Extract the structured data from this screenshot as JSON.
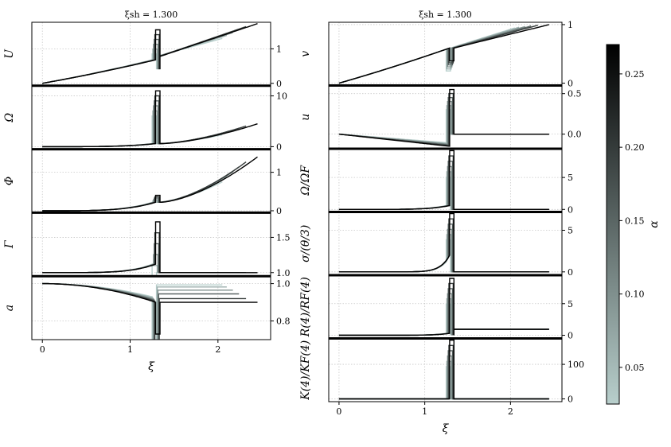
{
  "chart_data": {
    "type": "line",
    "colorbar": {
      "label": "α",
      "vmin": 0.025,
      "vmax": 0.27,
      "color_low": "#b8cfcc",
      "color_high": "#000000",
      "ticks": [
        {
          "v": 0.05,
          "label": "0.05"
        },
        {
          "v": 0.1,
          "label": "0.10"
        },
        {
          "v": 0.15,
          "label": "0.15"
        },
        {
          "v": 0.2,
          "label": "0.20"
        },
        {
          "v": 0.25,
          "label": "0.25"
        }
      ]
    },
    "alphas": [
      0.025,
      0.0625,
      0.1,
      0.15,
      0.2,
      0.27
    ],
    "shock": 1.25,
    "xlim": [
      -0.12,
      2.6
    ],
    "columns": [
      {
        "title": "ξsh = 1.300",
        "xlabel": "ξ",
        "xticks": [
          {
            "v": 0,
            "label": "0"
          },
          {
            "v": 1,
            "label": "1"
          },
          {
            "v": 2,
            "label": "2"
          }
        ],
        "panels": [
          {
            "ylabel": "U",
            "ylim": [
              -0.07,
              1.77
            ],
            "yticks": [
              {
                "v": 0,
                "label": "0"
              },
              {
                "v": 1,
                "label": "1"
              }
            ],
            "kind": "linear",
            "y0": 0,
            "ypre": 0.68,
            "spike": 1.55,
            "slope": 0.55,
            "ymax": 1.73,
            "xend": [
              2.05,
              2.1,
              2.17,
              2.24,
              2.32,
              2.45
            ]
          },
          {
            "ylabel": "Ω",
            "ylim": [
              -0.5,
              12
            ],
            "yticks": [
              {
                "v": 0,
                "label": "0"
              },
              {
                "v": 10,
                "label": "10"
              }
            ],
            "kind": "power",
            "y0": 0,
            "ypre": 0.6,
            "spike": 11,
            "slope": 0.0,
            "ymax": 4.5,
            "xend": [
              2.05,
              2.1,
              2.17,
              2.24,
              2.32,
              2.45
            ]
          },
          {
            "ylabel": "Φ",
            "ylim": [
              -0.05,
              1.6
            ],
            "yticks": [
              {
                "v": 0,
                "label": "0"
              },
              {
                "v": 1,
                "label": "1"
              }
            ],
            "kind": "power",
            "y0": 0,
            "ypre": 0.22,
            "spike": 0.4,
            "slope": 0.0,
            "ymax": 1.4,
            "xend": [
              2.05,
              2.1,
              2.17,
              2.24,
              2.32,
              2.45
            ]
          },
          {
            "ylabel": "Γ",
            "ylim": [
              0.95,
              1.85
            ],
            "yticks": [
              {
                "v": 1.0,
                "label": "1.0"
              },
              {
                "v": 1.5,
                "label": "1.5"
              }
            ],
            "kind": "gamma",
            "y0": 1.0,
            "ypre": 1.12,
            "spike": 1.72,
            "slope": 0.0,
            "ymax": 1.0,
            "xend": [
              2.05,
              2.1,
              2.17,
              2.24,
              2.32,
              2.45
            ]
          },
          {
            "ylabel": "a",
            "ylim": [
              0.7,
              1.04
            ],
            "yticks": [
              {
                "v": 0.8,
                "label": "0.8"
              },
              {
                "v": 1.0,
                "label": "1.0"
              }
            ],
            "kind": "lapse",
            "y0": 1.0,
            "ypre": 0.9,
            "spike": 0.73,
            "slope": 0.0,
            "ymax": 0.0,
            "post": [
              0.993,
              0.982,
              0.965,
              0.945,
              0.92,
              0.9
            ],
            "xend": [
              2.05,
              2.1,
              2.17,
              2.24,
              2.32,
              2.45
            ]
          }
        ]
      },
      {
        "title": "ξsh = 1.300",
        "xlabel": "ξ",
        "xticks": [
          {
            "v": 0,
            "label": "0"
          },
          {
            "v": 1,
            "label": "1"
          },
          {
            "v": 2,
            "label": "2"
          }
        ],
        "panels": [
          {
            "ylabel": "v",
            "ylim": [
              -0.04,
              1.04
            ],
            "yticks": [
              {
                "v": 0,
                "label": "0"
              },
              {
                "v": 1,
                "label": "1"
              }
            ],
            "kind": "vel",
            "y0": 0,
            "ypre": 0.58,
            "spike": 0.38,
            "slope": 0.0,
            "ymax": 1.0,
            "xend": [
              2.05,
              2.1,
              2.17,
              2.24,
              2.32,
              2.45
            ]
          },
          {
            "ylabel": "u",
            "ylim": [
              -0.18,
              0.6
            ],
            "yticks": [
              {
                "v": 0.0,
                "label": "0.0"
              },
              {
                "v": 0.5,
                "label": "0.5"
              }
            ],
            "kind": "uvel",
            "y0": 0,
            "ypre": -0.15,
            "spike": 0.55,
            "slope": 0.0,
            "ymax": 0.0,
            "xend": [
              2.45,
              2.45,
              2.45,
              2.45,
              2.45,
              2.45
            ]
          },
          {
            "ylabel": "Ω/ΩF",
            "ylim": [
              -0.4,
              9.5
            ],
            "yticks": [
              {
                "v": 0,
                "label": "0"
              },
              {
                "v": 5,
                "label": "5"
              }
            ],
            "kind": "ratio",
            "y0": 0,
            "ypre": 0.6,
            "spike": 9.2,
            "slope": 0.0,
            "ymax": 0.0,
            "xend": [
              2.45,
              2.45,
              2.45,
              2.45,
              2.45,
              2.45
            ]
          },
          {
            "ylabel": "σ/(θ/3)",
            "ylim": [
              -0.4,
              7.2
            ],
            "yticks": [
              {
                "v": 0,
                "label": "0"
              },
              {
                "v": 5,
                "label": "5"
              }
            ],
            "kind": "sigma",
            "y0": 0,
            "ypre": 2.0,
            "spike": 7.0,
            "slope": 0.0,
            "ymax": 0.0,
            "xend": [
              2.45,
              2.45,
              2.45,
              2.45,
              2.45,
              2.45
            ]
          },
          {
            "ylabel": "R(4)/RF(4)",
            "ylim": [
              -0.5,
              9.5
            ],
            "yticks": [
              {
                "v": 0,
                "label": "0"
              },
              {
                "v": 5,
                "label": "5"
              }
            ],
            "kind": "ratio2",
            "y0": 0,
            "ypre": 0.3,
            "spike": 9.0,
            "slope": 0.0,
            "ymax": 1.0,
            "xend": [
              2.45,
              2.45,
              2.45,
              2.45,
              2.45,
              2.45
            ]
          },
          {
            "ylabel": "K(4)/KF(4)",
            "ylim": [
              -8,
              175
            ],
            "yticks": [
              {
                "v": 0,
                "label": "0"
              },
              {
                "v": 100,
                "label": "100"
              }
            ],
            "kind": "ratio3",
            "y0": 0,
            "ypre": 0.0,
            "spike": 170,
            "slope": 0.0,
            "ymax": 0.0,
            "xend": [
              2.45,
              2.45,
              2.45,
              2.45,
              2.45,
              2.45
            ]
          }
        ]
      }
    ]
  }
}
